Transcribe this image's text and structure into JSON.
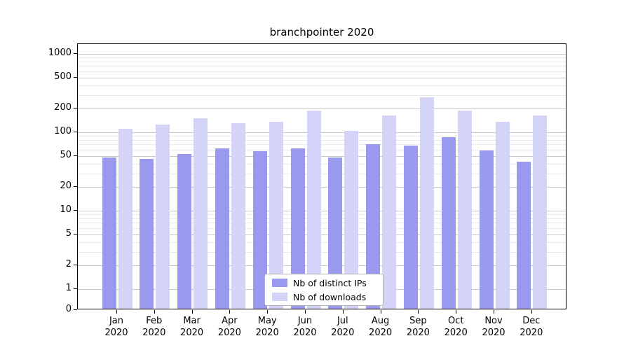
{
  "chart_data": {
    "type": "bar",
    "title": "branchpointer 2020",
    "categories": [
      "Jan 2020",
      "Feb 2020",
      "Mar 2020",
      "Apr 2020",
      "May 2020",
      "Jun 2020",
      "Jul 2020",
      "Aug 2020",
      "Sep 2020",
      "Oct 2020",
      "Nov 2020",
      "Dec 2020"
    ],
    "series": [
      {
        "name": "Nb of distinct IPs",
        "color": "#9999ee",
        "values": [
          48,
          46,
          53,
          63,
          57,
          63,
          48,
          70,
          68,
          87,
          59,
          42
        ]
      },
      {
        "name": "Nb of downloads",
        "color": "#d4d4f8",
        "values": [
          112,
          125,
          150,
          130,
          135,
          190,
          105,
          165,
          280,
          190,
          135,
          165
        ]
      }
    ],
    "yscale": "symlog",
    "y_ticks": [
      1000,
      500,
      200,
      100,
      50,
      20,
      10,
      5,
      2,
      1,
      0
    ],
    "ylim": [
      0,
      1400
    ],
    "grid": true,
    "legend_position": "lower center"
  }
}
